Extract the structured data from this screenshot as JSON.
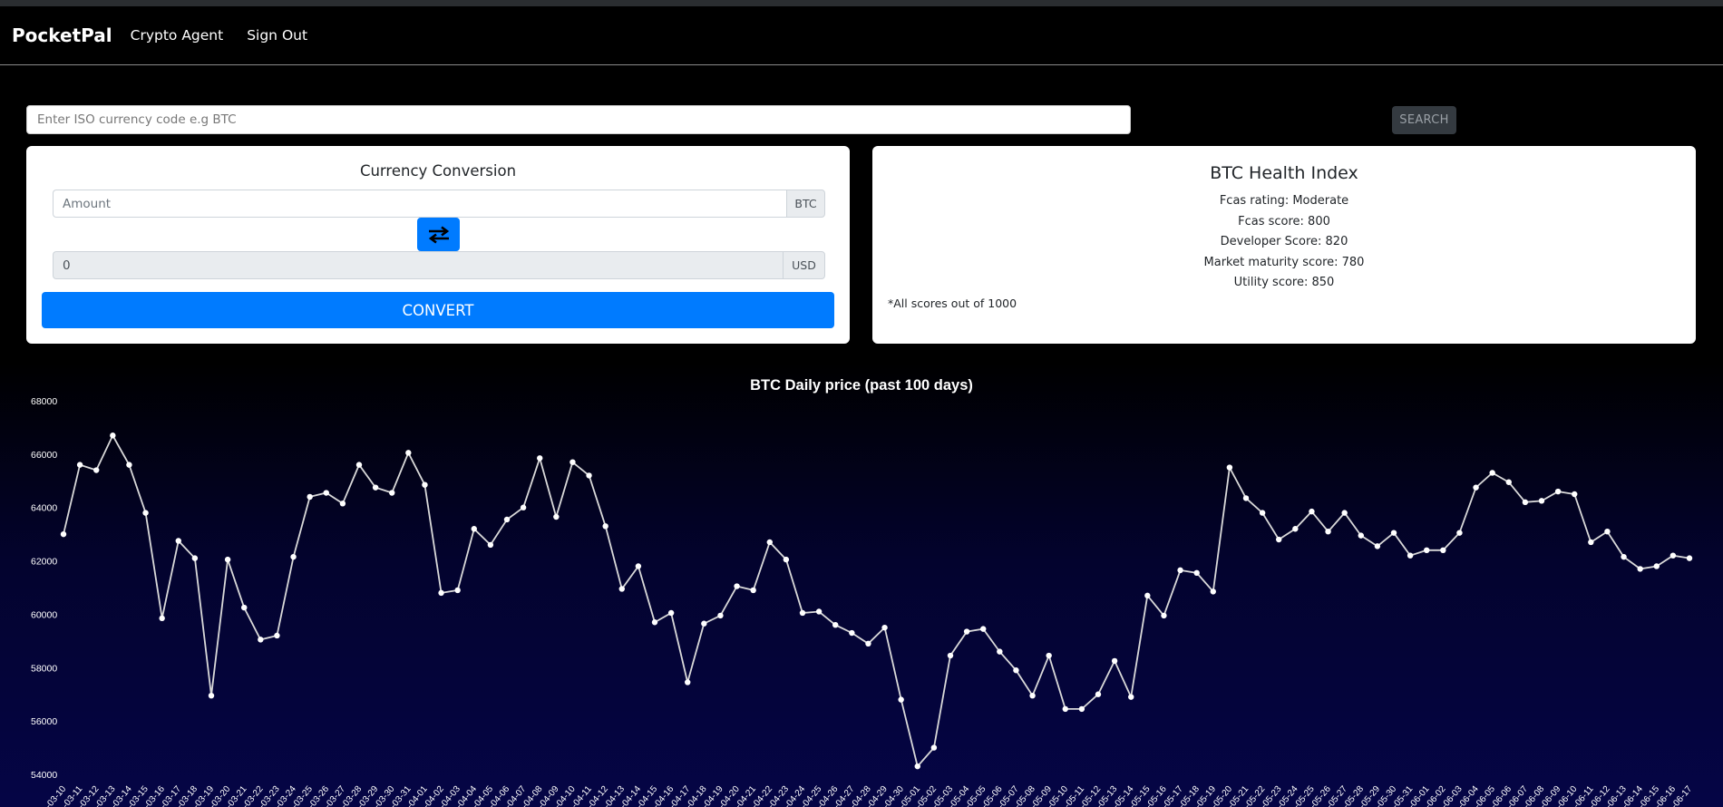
{
  "navbar": {
    "brand": "PocketPal",
    "links": [
      "Crypto Agent",
      "Sign Out"
    ]
  },
  "search": {
    "placeholder": "Enter ISO currency code e.g BTC",
    "button_label": "SEARCH"
  },
  "conversion": {
    "title": "Currency Conversion",
    "amount_placeholder": "Amount",
    "from_currency": "BTC",
    "result_value": "0",
    "to_currency": "USD",
    "convert_label": "CONVERT"
  },
  "health": {
    "title": "BTC Health Index",
    "items": [
      "Fcas rating: Moderate",
      "Fcas score: 800",
      "Developer Score: 820",
      "Market maturity score: 780",
      "Utility score: 850"
    ],
    "note": "*All scores out of 1000"
  },
  "colors": {
    "accent": "#007bff",
    "line": "#d9d9d9"
  },
  "chart_data": {
    "type": "line",
    "title": "BTC Daily price (past 100 days)",
    "xlabel": "",
    "ylabel": "",
    "ylim": [
      54000,
      68000
    ],
    "yticks": [
      54000,
      56000,
      58000,
      60000,
      62000,
      64000,
      66000,
      68000
    ],
    "grid": false,
    "legend": "none",
    "x": [
      "-03-10",
      "-03-11",
      "-03-12",
      "-03-13",
      "-03-14",
      "-03-15",
      "-03-16",
      "-03-17",
      "-03-18",
      "-03-19",
      "-03-20",
      "-03-21",
      "-03-22",
      "-03-23",
      "-03-24",
      "-03-25",
      "-03-26",
      "-03-27",
      "-03-28",
      "-03-29",
      "-03-30",
      "-03-31",
      "-04-01",
      "-04-02",
      "-04-03",
      "-04-04",
      "-04-05",
      "-04-06",
      "-04-07",
      "-04-08",
      "-04-09",
      "-04-10",
      "-04-11",
      "-04-12",
      "-04-13",
      "-04-14",
      "-04-15",
      "-04-16",
      "-04-17",
      "-04-18",
      "-04-19",
      "-04-20",
      "-04-21",
      "-04-22",
      "-04-23",
      "-04-24",
      "-04-25",
      "-04-26",
      "-04-27",
      "-04-28",
      "-04-29",
      "-04-30",
      "-05-01",
      "-05-02",
      "-05-03",
      "-05-04",
      "-05-05",
      "-05-06",
      "-05-07",
      "-05-08",
      "-05-09",
      "-05-10",
      "-05-11",
      "-05-12",
      "-05-13",
      "-05-14",
      "-05-15",
      "-05-16",
      "-05-17",
      "-05-18",
      "-05-19",
      "-05-20",
      "-05-21",
      "-05-22",
      "-05-23",
      "-05-24",
      "-05-25",
      "-05-26",
      "-05-27",
      "-05-28",
      "-05-29",
      "-05-30",
      "-05-31",
      "-06-01",
      "-06-02",
      "-06-03",
      "-06-04",
      "-06-05",
      "-06-06",
      "-06-07",
      "-06-08",
      "-06-09",
      "-06-10",
      "-06-11",
      "-06-12",
      "-06-13",
      "-06-14",
      "-06-15",
      "-06-16",
      "-06-17"
    ],
    "series": [
      {
        "values": [
          63000,
          65600,
          65400,
          66700,
          65600,
          63800,
          59850,
          62750,
          62100,
          56950,
          62050,
          60250,
          59050,
          59200,
          62150,
          64400,
          64550,
          64150,
          65600,
          64750,
          64550,
          66050,
          64850,
          60800,
          60900,
          63200,
          62600,
          63550,
          64000,
          65850,
          63650,
          65700,
          65200,
          63300,
          60950,
          61800,
          59700,
          60050,
          57450,
          59650,
          59950,
          61050,
          60900,
          62700,
          62050,
          60050,
          60100,
          59600,
          59300,
          58900,
          59500,
          56800,
          54300,
          55000,
          58450,
          59350,
          59450,
          58600,
          57900,
          56950,
          58450,
          56450,
          56450,
          57000,
          58250,
          56900,
          60700,
          59950,
          61650,
          61550,
          60850,
          65500,
          64350,
          63800,
          62800,
          63200,
          63850,
          63100,
          63800,
          62950,
          62550,
          63050,
          62200,
          62400,
          62400,
          63050,
          64750,
          65300,
          64950,
          64200,
          64250,
          64600,
          64500,
          62700,
          63100,
          62150,
          61700,
          61800,
          62200,
          62100
        ]
      }
    ]
  }
}
